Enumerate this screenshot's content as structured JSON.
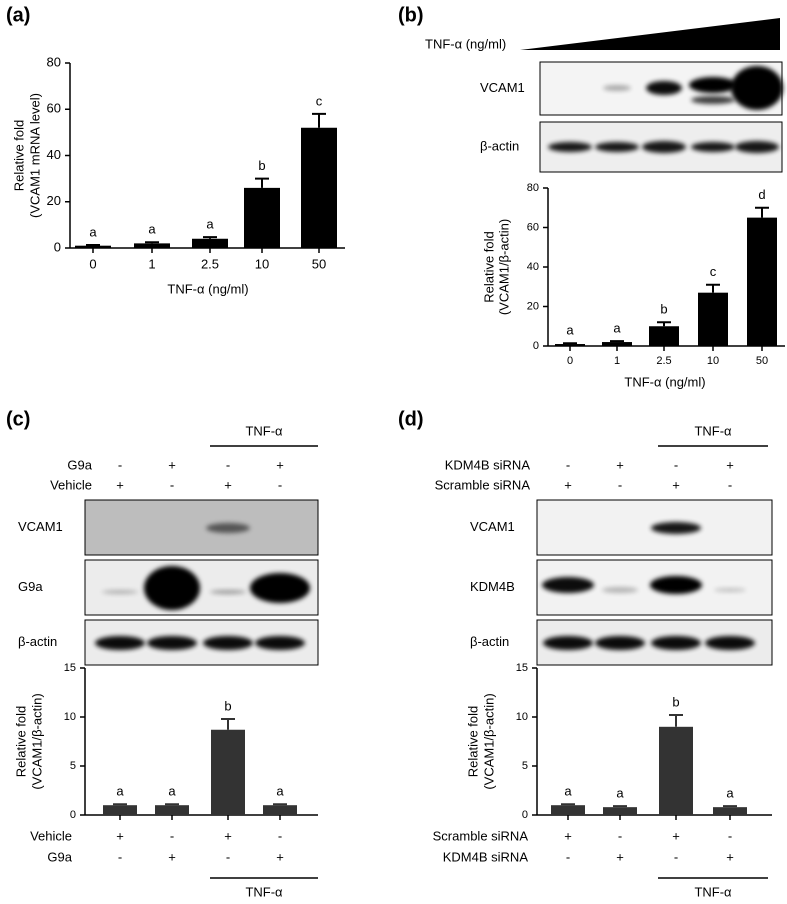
{
  "chart_data": [
    {
      "type": "bar",
      "panel_label": "(a)",
      "ylabel": [
        "Relative fold",
        "(VCAM1  mRNA level)"
      ],
      "xlabel": "TNF-α (ng/ml)",
      "categories": [
        "0",
        "1",
        "2.5",
        "10",
        "50"
      ],
      "values": [
        1,
        2,
        4,
        26,
        52
      ],
      "errors": [
        0.3,
        0.5,
        0.7,
        4,
        6
      ],
      "annotations": [
        "a",
        "a",
        "a",
        "b",
        "c"
      ],
      "color": "#000000",
      "ylim": [
        0,
        80
      ],
      "yticks": [
        0,
        20,
        40,
        60,
        80
      ]
    },
    {
      "type": "bar",
      "panel_label": "(b)",
      "ylabel": [
        "Relative fold",
        "(VCAM1/β-actin)"
      ],
      "xlabel": "TNF-α (ng/ml)",
      "categories": [
        "0",
        "1",
        "2.5",
        "10",
        "50"
      ],
      "values": [
        1,
        2,
        10,
        27,
        65
      ],
      "errors": [
        0.4,
        0.5,
        2,
        4,
        5
      ],
      "annotations": [
        "a",
        "a",
        "b",
        "c",
        "d"
      ],
      "color": "#000000",
      "ylim": [
        0,
        80
      ],
      "yticks": [
        0,
        20,
        40,
        60,
        80
      ],
      "blot": {
        "treatment_label": "TNF-α (ng/ml)",
        "bands": [
          "VCAM1",
          "β-actin"
        ]
      }
    },
    {
      "type": "bar",
      "panel_label": "(c)",
      "ylabel": [
        "Relative fold",
        "(VCAM1/β-actin)"
      ],
      "values": [
        1,
        1,
        8.7,
        1
      ],
      "errors": [
        0.1,
        0.1,
        1.1,
        0.1
      ],
      "annotations": [
        "a",
        "a",
        "b",
        "a"
      ],
      "color": "#333333",
      "ylim": [
        0,
        15
      ],
      "yticks": [
        0,
        5,
        10,
        15
      ],
      "conditions": [
        {
          "name": "Vehicle",
          "signs": [
            "+",
            "-",
            "+",
            "-"
          ]
        },
        {
          "name": "G9a",
          "signs": [
            "-",
            "+",
            "-",
            "+"
          ]
        }
      ],
      "group_label": "TNF-α",
      "blot": {
        "group_label": "TNF-α",
        "rows": [
          {
            "name": "G9a",
            "signs": [
              "-",
              "+",
              "-",
              "+"
            ]
          },
          {
            "name": "Vehicle",
            "signs": [
              "+",
              "-",
              "+",
              "-"
            ]
          }
        ],
        "bands": [
          "VCAM1",
          "G9a",
          "β-actin"
        ]
      }
    },
    {
      "type": "bar",
      "panel_label": "(d)",
      "ylabel": [
        "Relative fold",
        "(VCAM1/β-actin)"
      ],
      "values": [
        1,
        0.8,
        9,
        0.8
      ],
      "errors": [
        0.1,
        0.1,
        1.2,
        0.1
      ],
      "annotations": [
        "a",
        "a",
        "b",
        "a"
      ],
      "color": "#333333",
      "ylim": [
        0,
        15
      ],
      "yticks": [
        0,
        5,
        10,
        15
      ],
      "conditions": [
        {
          "name": "Scramble siRNA",
          "signs": [
            "+",
            "-",
            "+",
            "-"
          ]
        },
        {
          "name": "KDM4B siRNA",
          "signs": [
            "-",
            "+",
            "-",
            "+"
          ]
        }
      ],
      "group_label": "TNF-α",
      "blot": {
        "group_label": "TNF-α",
        "rows": [
          {
            "name": "KDM4B siRNA",
            "signs": [
              "-",
              "+",
              "-",
              "+"
            ]
          },
          {
            "name": "Scramble siRNA",
            "signs": [
              "+",
              "-",
              "+",
              "-"
            ]
          }
        ],
        "bands": [
          "VCAM1",
          "KDM4B",
          "β-actin"
        ]
      }
    }
  ]
}
